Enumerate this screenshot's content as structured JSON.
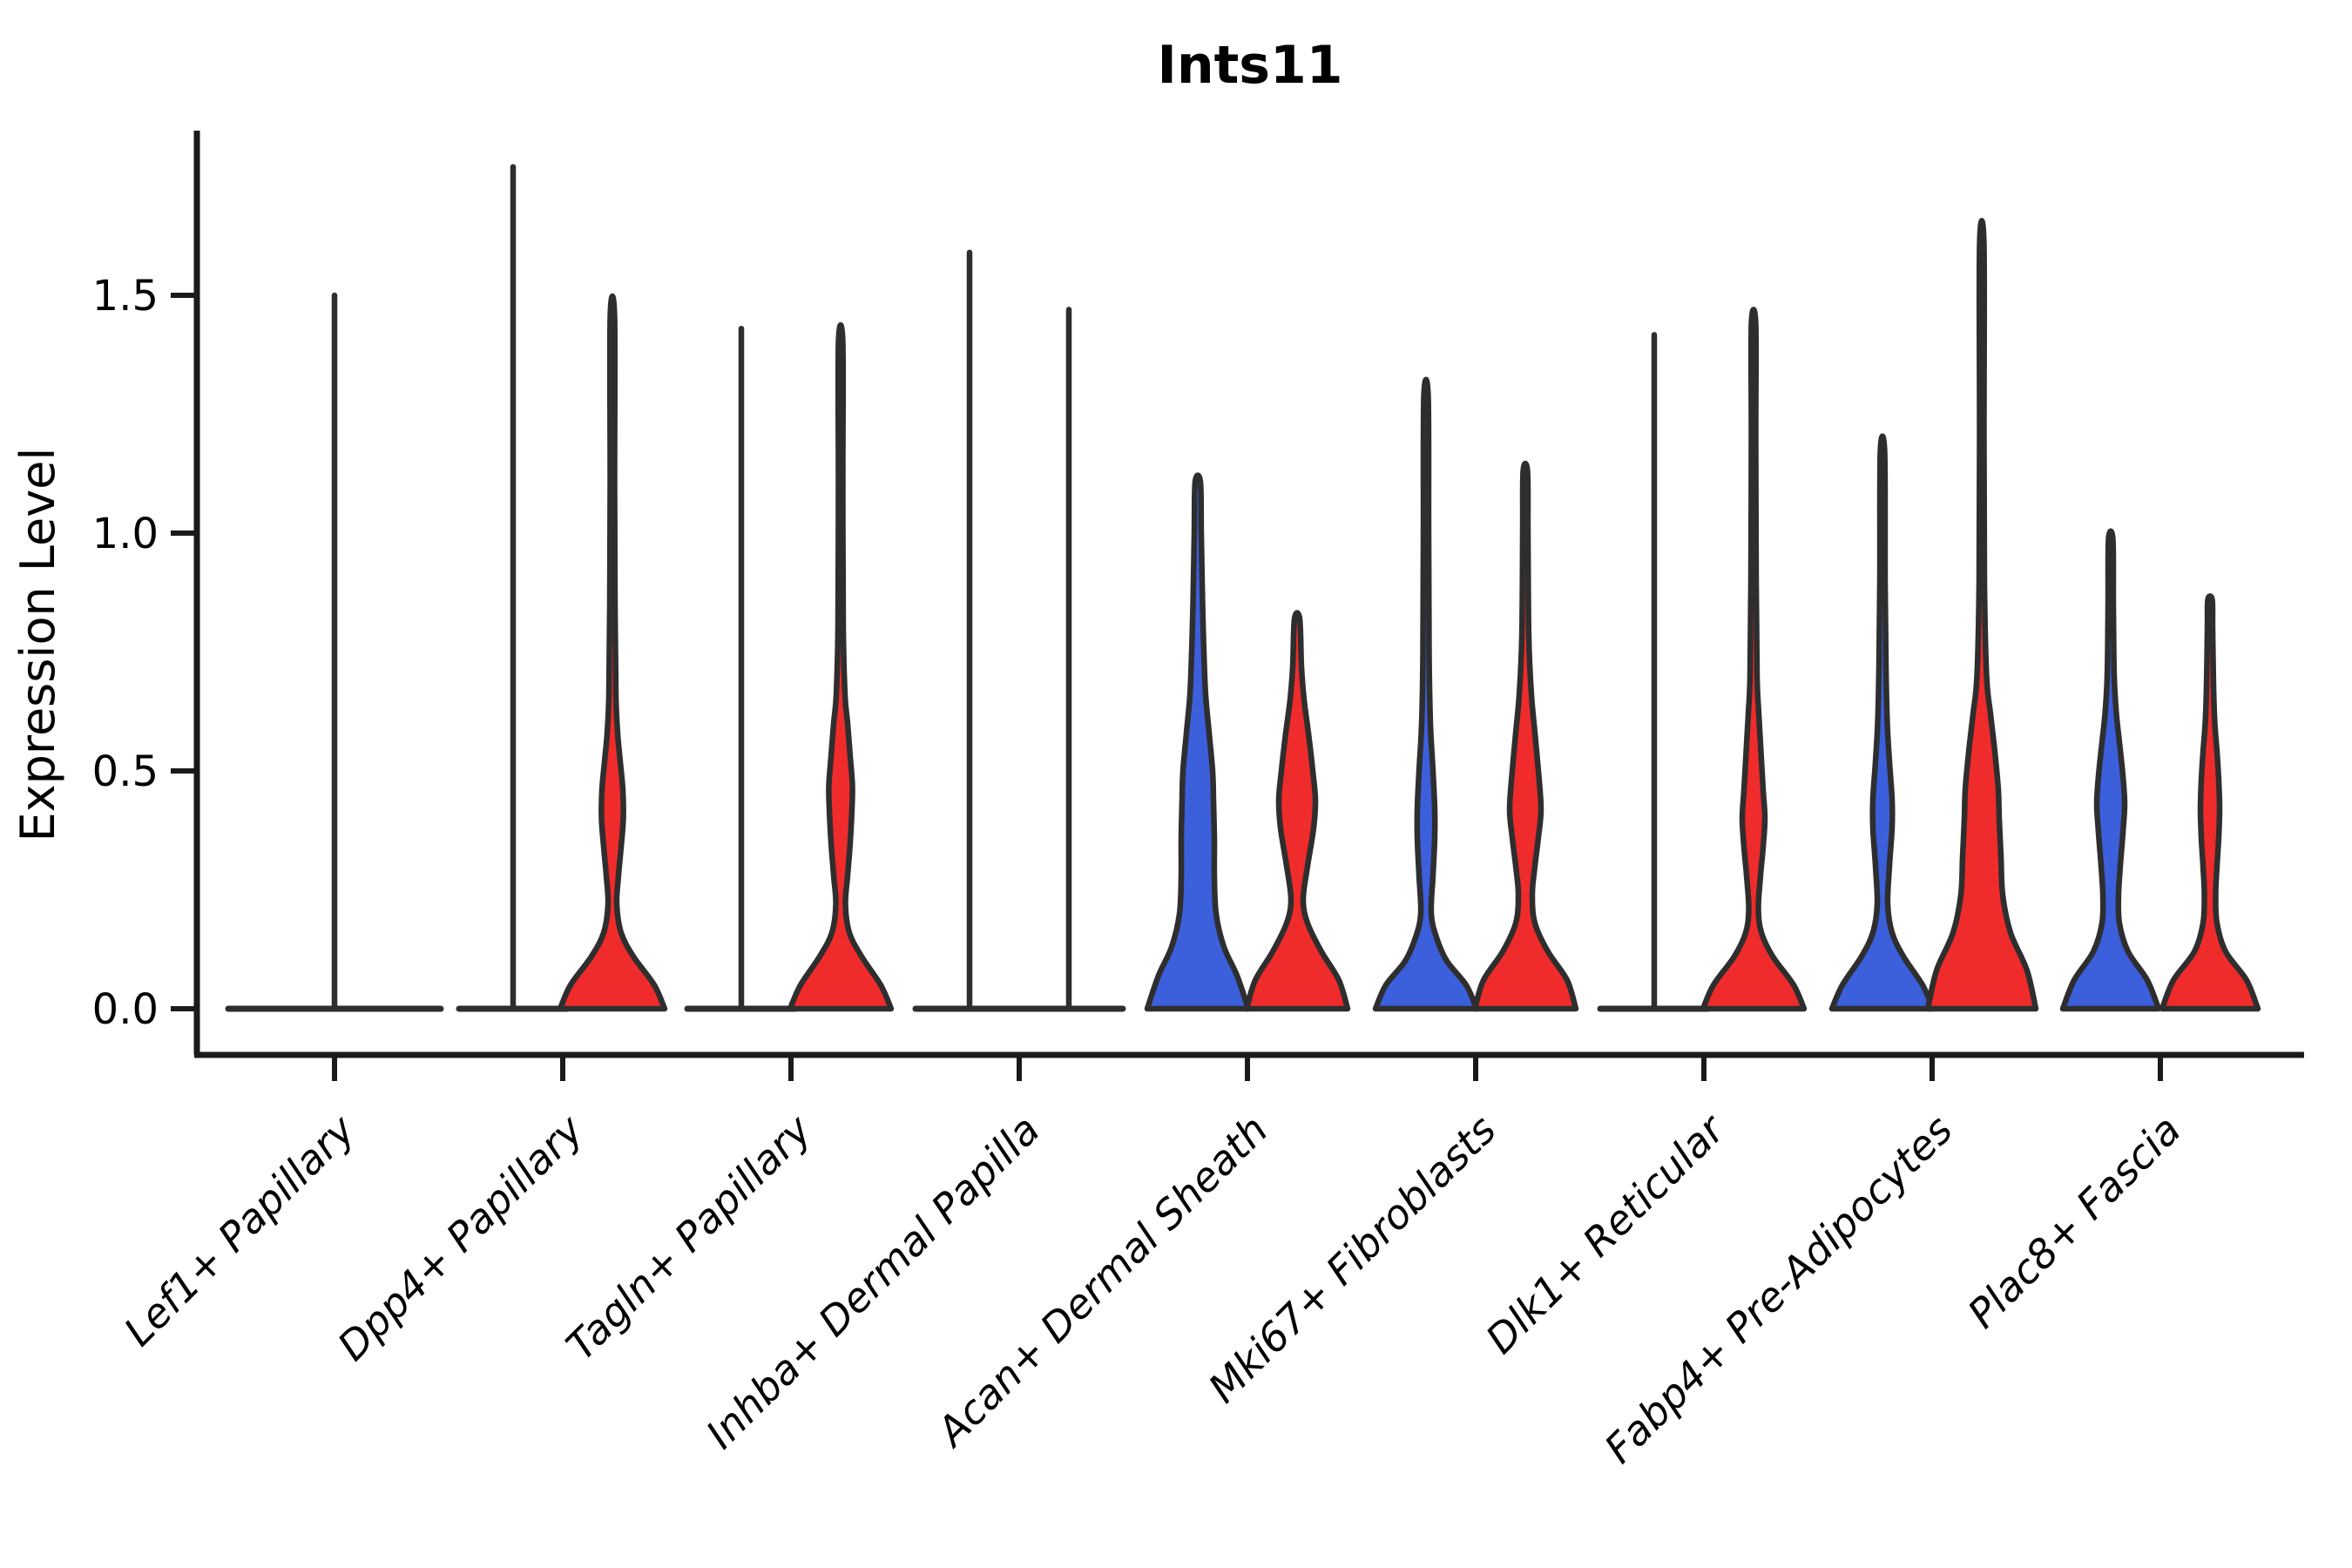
{
  "figure": {
    "title": "Ints11"
  },
  "chart_data": {
    "type": "violin",
    "title": "Ints11",
    "xlabel": "",
    "ylabel": "Expression Level",
    "legend": "none",
    "grid": false,
    "ytick_labels": [
      "0.0",
      "0.5",
      "1.0",
      "1.5"
    ],
    "ytick_values": [
      0.0,
      0.5,
      1.0,
      1.5
    ],
    "ylim": [
      -0.09,
      1.85
    ],
    "categories": [
      "Lef1+ Papillary",
      "Dpp4+ Papillary",
      "Tagln+ Papillary",
      "Inhba+ Dermal Papilla",
      "Acan+ Dermal Sheath",
      "Mki67+ Fibroblasts",
      "Dlk1+ Reticular",
      "Fabp4+ Pre-Adipocytes",
      "Plac8+ Fascia"
    ],
    "colors": {
      "blue": "#3C5FDC",
      "red": "#F02B2B",
      "outline": "#2E2E2E",
      "axis": "#1A1A1A"
    },
    "violins": [
      {
        "category_index": 0,
        "split": "single",
        "fill": "none",
        "flat": true,
        "dodge": 0,
        "max": 1.5,
        "base_halfwidth": 122
      },
      {
        "category_index": 1,
        "split": "blue",
        "fill": "blue",
        "flat": true,
        "dodge": -1,
        "max": 1.77,
        "base_halfwidth": 62
      },
      {
        "category_index": 1,
        "split": "red",
        "fill": "red",
        "flat": false,
        "dodge": 1,
        "max": 1.454,
        "profile": [
          [
            0,
            60
          ],
          [
            0.05,
            48
          ],
          [
            0.11,
            24
          ],
          [
            0.16,
            10
          ],
          [
            0.22,
            5
          ],
          [
            0.28,
            7
          ],
          [
            0.34,
            10
          ],
          [
            0.4,
            12.5
          ],
          [
            0.46,
            12
          ],
          [
            0.52,
            9
          ],
          [
            0.58,
            6
          ],
          [
            0.66,
            4
          ],
          [
            0.85,
            3
          ],
          [
            1.1,
            2.5
          ],
          [
            1.454,
            2.5
          ]
        ]
      },
      {
        "category_index": 2,
        "split": "blue",
        "fill": "blue",
        "flat": true,
        "dodge": -1,
        "max": 1.43,
        "base_halfwidth": 62
      },
      {
        "category_index": 2,
        "split": "red",
        "fill": "red",
        "flat": false,
        "dodge": 1,
        "max": 1.4,
        "profile": [
          [
            0,
            58
          ],
          [
            0.05,
            46
          ],
          [
            0.11,
            24
          ],
          [
            0.16,
            10
          ],
          [
            0.22,
            5.5
          ],
          [
            0.28,
            8
          ],
          [
            0.35,
            11
          ],
          [
            0.42,
            13
          ],
          [
            0.47,
            13.5
          ],
          [
            0.53,
            11
          ],
          [
            0.6,
            8
          ],
          [
            0.66,
            5
          ],
          [
            0.8,
            3
          ],
          [
            1.1,
            2.5
          ],
          [
            1.4,
            2.5
          ]
        ]
      },
      {
        "category_index": 3,
        "split": "blue",
        "fill": "blue",
        "flat": true,
        "dodge": -1,
        "max": 1.59,
        "base_halfwidth": 62
      },
      {
        "category_index": 3,
        "split": "red",
        "fill": "red",
        "flat": true,
        "dodge": 1,
        "max": 1.47,
        "base_halfwidth": 62
      },
      {
        "category_index": 4,
        "split": "blue",
        "fill": "blue",
        "flat": false,
        "dodge": -1,
        "max": 1.108,
        "profile": [
          [
            0,
            58
          ],
          [
            0.07,
            45
          ],
          [
            0.13,
            30
          ],
          [
            0.2,
            21
          ],
          [
            0.28,
            19
          ],
          [
            0.36,
            19
          ],
          [
            0.44,
            18
          ],
          [
            0.5,
            17
          ],
          [
            0.58,
            13
          ],
          [
            0.66,
            9
          ],
          [
            0.75,
            7
          ],
          [
            0.85,
            5.5
          ],
          [
            1.0,
            4
          ],
          [
            1.108,
            3
          ]
        ]
      },
      {
        "category_index": 4,
        "split": "red",
        "fill": "red",
        "flat": false,
        "dodge": 1,
        "max": 0.82,
        "profile": [
          [
            0,
            58
          ],
          [
            0.06,
            48
          ],
          [
            0.12,
            28
          ],
          [
            0.18,
            12
          ],
          [
            0.23,
            7
          ],
          [
            0.3,
            12
          ],
          [
            0.38,
            19
          ],
          [
            0.44,
            21
          ],
          [
            0.5,
            18
          ],
          [
            0.58,
            13
          ],
          [
            0.65,
            8
          ],
          [
            0.72,
            5
          ],
          [
            0.82,
            3
          ]
        ]
      },
      {
        "category_index": 5,
        "split": "blue",
        "fill": "blue",
        "flat": false,
        "dodge": -1,
        "max": 1.287,
        "profile": [
          [
            0,
            58
          ],
          [
            0.05,
            46
          ],
          [
            0.1,
            24
          ],
          [
            0.15,
            12
          ],
          [
            0.2,
            6
          ],
          [
            0.28,
            8
          ],
          [
            0.36,
            10
          ],
          [
            0.42,
            10
          ],
          [
            0.5,
            8
          ],
          [
            0.6,
            5
          ],
          [
            0.75,
            3.5
          ],
          [
            1.0,
            3
          ],
          [
            1.287,
            2.5
          ]
        ]
      },
      {
        "category_index": 5,
        "split": "red",
        "fill": "red",
        "flat": false,
        "dodge": 1,
        "max": 1.13,
        "profile": [
          [
            0,
            58
          ],
          [
            0.06,
            48
          ],
          [
            0.12,
            26
          ],
          [
            0.18,
            11
          ],
          [
            0.24,
            8
          ],
          [
            0.3,
            11
          ],
          [
            0.36,
            15
          ],
          [
            0.42,
            18
          ],
          [
            0.5,
            15
          ],
          [
            0.58,
            11
          ],
          [
            0.66,
            7
          ],
          [
            0.78,
            4
          ],
          [
            1.0,
            3
          ],
          [
            1.13,
            2.5
          ]
        ]
      },
      {
        "category_index": 6,
        "split": "blue",
        "fill": "blue",
        "flat": true,
        "dodge": -1,
        "max": 1.417,
        "base_halfwidth": 62
      },
      {
        "category_index": 6,
        "split": "red",
        "fill": "red",
        "flat": false,
        "dodge": 1,
        "max": 1.44,
        "profile": [
          [
            0,
            58
          ],
          [
            0.05,
            46
          ],
          [
            0.11,
            22
          ],
          [
            0.16,
            9
          ],
          [
            0.21,
            5.5
          ],
          [
            0.28,
            8
          ],
          [
            0.34,
            11
          ],
          [
            0.4,
            13
          ],
          [
            0.46,
            11
          ],
          [
            0.54,
            8.5
          ],
          [
            0.62,
            6
          ],
          [
            0.7,
            4
          ],
          [
            0.9,
            3
          ],
          [
            1.2,
            2.5
          ],
          [
            1.44,
            2.5
          ]
        ]
      },
      {
        "category_index": 7,
        "split": "blue",
        "fill": "blue",
        "flat": false,
        "dodge": -1,
        "max": 1.17,
        "profile": [
          [
            0,
            58
          ],
          [
            0.05,
            46
          ],
          [
            0.11,
            24
          ],
          [
            0.16,
            11
          ],
          [
            0.22,
            6
          ],
          [
            0.3,
            8
          ],
          [
            0.38,
            11
          ],
          [
            0.44,
            11
          ],
          [
            0.52,
            8
          ],
          [
            0.6,
            5.5
          ],
          [
            0.72,
            4
          ],
          [
            0.9,
            3
          ],
          [
            1.17,
            2.5
          ]
        ]
      },
      {
        "category_index": 7,
        "split": "red",
        "fill": "red",
        "flat": false,
        "dodge": 1,
        "max": 1.606,
        "profile": [
          [
            0,
            62
          ],
          [
            0.08,
            52
          ],
          [
            0.16,
            33
          ],
          [
            0.24,
            24
          ],
          [
            0.32,
            22
          ],
          [
            0.4,
            20
          ],
          [
            0.46,
            19
          ],
          [
            0.54,
            15
          ],
          [
            0.62,
            10
          ],
          [
            0.7,
            5.5
          ],
          [
            0.9,
            3
          ],
          [
            1.2,
            2.5
          ],
          [
            1.606,
            2.5
          ]
        ]
      },
      {
        "category_index": 8,
        "split": "blue",
        "fill": "blue",
        "flat": false,
        "dodge": -1,
        "max": 0.987,
        "profile": [
          [
            0,
            55
          ],
          [
            0.06,
            42
          ],
          [
            0.12,
            20
          ],
          [
            0.18,
            10
          ],
          [
            0.24,
            9
          ],
          [
            0.3,
            11
          ],
          [
            0.37,
            14
          ],
          [
            0.43,
            16
          ],
          [
            0.49,
            14
          ],
          [
            0.56,
            10
          ],
          [
            0.62,
            6.5
          ],
          [
            0.7,
            4
          ],
          [
            0.85,
            3
          ],
          [
            0.987,
            2.5
          ]
        ]
      },
      {
        "category_index": 8,
        "split": "red",
        "fill": "red",
        "flat": false,
        "dodge": 1,
        "max": 0.86,
        "profile": [
          [
            0,
            55
          ],
          [
            0.06,
            42
          ],
          [
            0.12,
            18
          ],
          [
            0.18,
            8
          ],
          [
            0.24,
            6.5
          ],
          [
            0.3,
            8
          ],
          [
            0.36,
            10
          ],
          [
            0.42,
            11
          ],
          [
            0.48,
            10
          ],
          [
            0.54,
            8
          ],
          [
            0.6,
            5.5
          ],
          [
            0.68,
            4
          ],
          [
            0.8,
            3
          ],
          [
            0.86,
            2.5
          ]
        ]
      }
    ]
  }
}
